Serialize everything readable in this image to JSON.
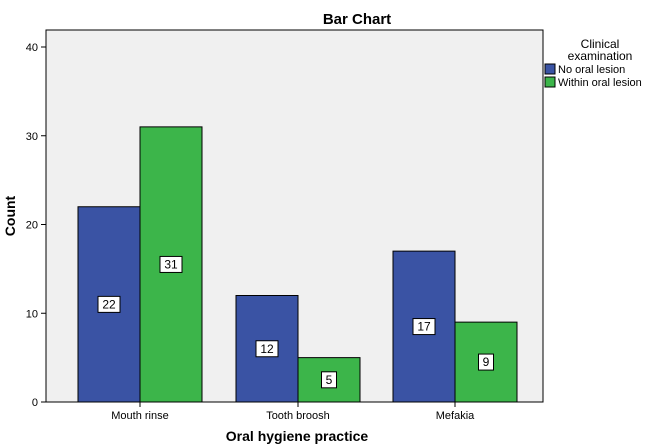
{
  "chart_data": {
    "type": "bar",
    "title": "Bar Chart",
    "xlabel": "Oral hygiene practice",
    "ylabel": "Count",
    "categories": [
      "Mouth rinse",
      "Tooth broosh",
      "Mefakia"
    ],
    "series": [
      {
        "name": "No oral lesion",
        "values": [
          22,
          12,
          17
        ],
        "color": "#3a53a4"
      },
      {
        "name": "Within oral lesion",
        "values": [
          31,
          5,
          9
        ],
        "color": "#3cb54a"
      }
    ],
    "ylim": [
      0,
      40
    ],
    "yticks": [
      0,
      10,
      20,
      30,
      40
    ],
    "ytick_labels": [
      "0",
      "10",
      "20",
      "30",
      "40"
    ],
    "grid": false,
    "legend": {
      "title_line1": "Clinical",
      "title_line2": "examination",
      "position": "right"
    },
    "plot_background": "#f0f0f0"
  }
}
